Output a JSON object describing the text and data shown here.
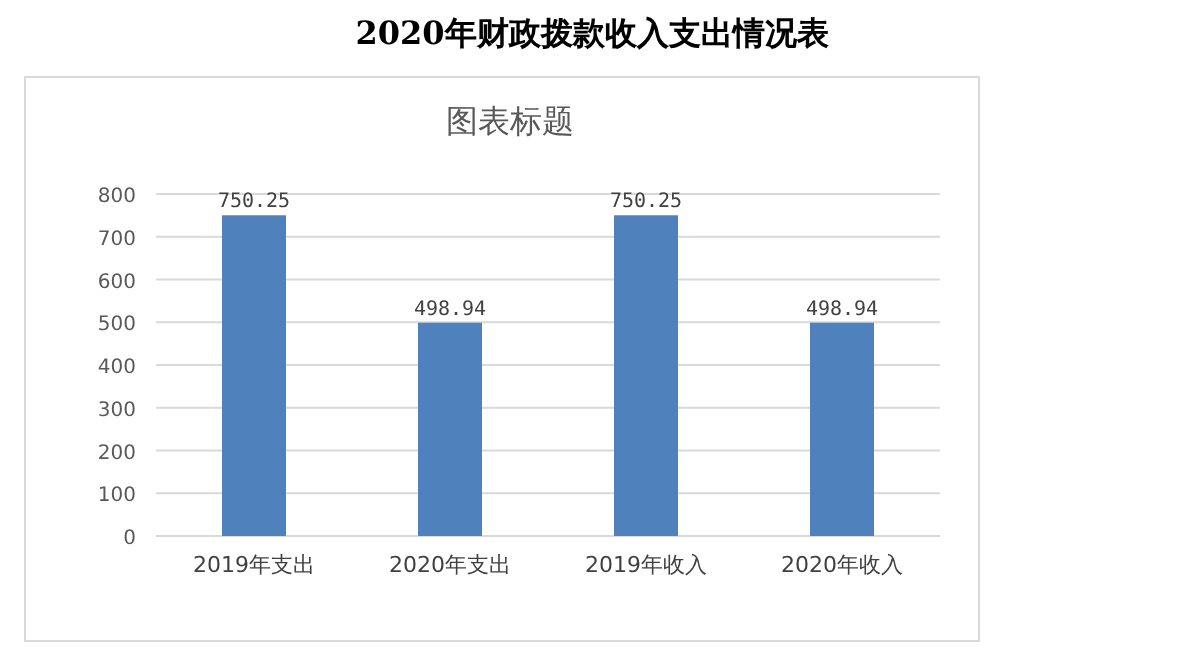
{
  "chart_data": {
    "type": "bar",
    "title": "2020年财政拨款收入支出情况表",
    "subtitle": "图表标题",
    "categories": [
      "2019年支出",
      "2020年支出",
      "2019年收入",
      "2020年收入"
    ],
    "values": [
      750.25,
      498.94,
      750.25,
      498.94
    ],
    "color": "#4f81bd",
    "ylim": [
      0,
      800
    ],
    "yticks": [
      0,
      100,
      200,
      300,
      400,
      500,
      600,
      700,
      800
    ],
    "grid": "y",
    "data_labels": true
  }
}
